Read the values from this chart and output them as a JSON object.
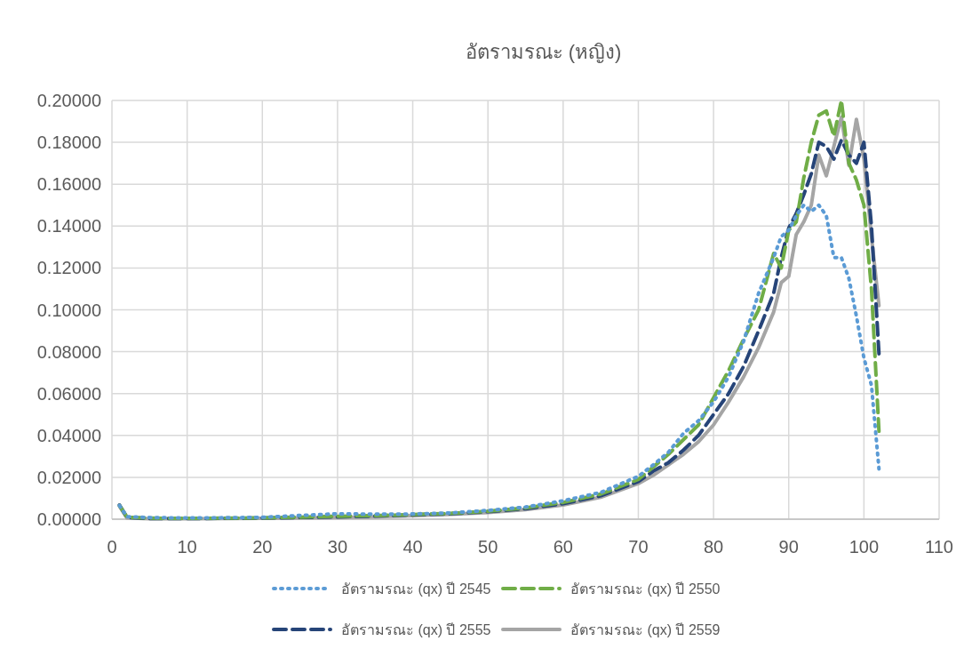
{
  "chart_data": {
    "type": "line",
    "title": "อัตรามรณะ (หญิง)",
    "x": [
      1,
      2,
      5,
      10,
      15,
      20,
      25,
      30,
      35,
      40,
      45,
      50,
      55,
      60,
      65,
      70,
      72,
      74,
      76,
      78,
      80,
      82,
      84,
      86,
      88,
      89,
      90,
      91,
      92,
      93,
      94,
      95,
      96,
      97,
      98,
      99,
      100,
      101,
      102
    ],
    "series": [
      {
        "name": "อัตรามรณะ (qx) ปี 2545",
        "color": "#5b9bd5",
        "line_style": "dotted",
        "values": [
          0.0065,
          0.0012,
          0.0008,
          0.0006,
          0.0007,
          0.0009,
          0.0018,
          0.0026,
          0.0024,
          0.0025,
          0.003,
          0.0042,
          0.0058,
          0.0088,
          0.0128,
          0.0205,
          0.026,
          0.032,
          0.041,
          0.047,
          0.056,
          0.068,
          0.085,
          0.108,
          0.125,
          0.135,
          0.138,
          0.145,
          0.15,
          0.147,
          0.15,
          0.145,
          0.125,
          0.125,
          0.115,
          0.097,
          0.077,
          0.064,
          0.024
        ]
      },
      {
        "name": "อัตรามรณะ (qx) ปี 2550",
        "color": "#70ad47",
        "line_style": "dashed",
        "values": [
          0.0065,
          0.001,
          0.0005,
          0.0004,
          0.0005,
          0.0006,
          0.001,
          0.0014,
          0.0017,
          0.0022,
          0.0028,
          0.0038,
          0.0054,
          0.008,
          0.012,
          0.019,
          0.025,
          0.031,
          0.038,
          0.045,
          0.058,
          0.071,
          0.086,
          0.1,
          0.127,
          0.12,
          0.138,
          0.142,
          0.163,
          0.18,
          0.193,
          0.195,
          0.183,
          0.2,
          0.17,
          0.162,
          0.15,
          0.11,
          0.042
        ]
      },
      {
        "name": "อัตรามรณะ (qx) ปี 2555",
        "color": "#264478",
        "line_style": "dashed",
        "values": [
          0.0068,
          0.0008,
          0.0003,
          0.0003,
          0.0004,
          0.0005,
          0.0008,
          0.0011,
          0.0015,
          0.002,
          0.0026,
          0.0036,
          0.005,
          0.0074,
          0.0112,
          0.018,
          0.023,
          0.027,
          0.033,
          0.04,
          0.05,
          0.06,
          0.073,
          0.09,
          0.108,
          0.125,
          0.139,
          0.146,
          0.155,
          0.165,
          0.18,
          0.178,
          0.172,
          0.181,
          0.174,
          0.17,
          0.18,
          0.14,
          0.079
        ]
      },
      {
        "name": "อัตรามรณะ (qx) ปี 2559",
        "color": "#a5a5a5",
        "line_style": "solid",
        "values": [
          0.0062,
          0.0006,
          0.0002,
          0.0002,
          0.0003,
          0.0004,
          0.0006,
          0.0009,
          0.0012,
          0.0017,
          0.0023,
          0.0032,
          0.0046,
          0.0068,
          0.0105,
          0.017,
          0.021,
          0.026,
          0.031,
          0.037,
          0.045,
          0.056,
          0.068,
          0.082,
          0.099,
          0.113,
          0.116,
          0.136,
          0.142,
          0.15,
          0.174,
          0.164,
          0.178,
          0.192,
          0.169,
          0.191,
          0.172,
          0.135,
          0.102
        ]
      }
    ],
    "xlim": [
      0,
      110
    ],
    "xticks": [
      0,
      10,
      20,
      30,
      40,
      50,
      60,
      70,
      80,
      90,
      100,
      110
    ],
    "ylim": [
      0,
      0.2
    ],
    "yticks": [
      {
        "value": 0,
        "label": "0.00000"
      },
      {
        "value": 0.02,
        "label": "0.02000"
      },
      {
        "value": 0.04,
        "label": "0.04000"
      },
      {
        "value": 0.06,
        "label": "0.06000"
      },
      {
        "value": 0.08,
        "label": "0.08000"
      },
      {
        "value": 0.1,
        "label": "0.10000"
      },
      {
        "value": 0.12,
        "label": "0.12000"
      },
      {
        "value": 0.14,
        "label": "0.14000"
      },
      {
        "value": 0.16,
        "label": "0.16000"
      },
      {
        "value": 0.18,
        "label": "0.18000"
      },
      {
        "value": 0.2,
        "label": "0.20000"
      }
    ],
    "grid": true,
    "legend": "bottom",
    "marker": "none"
  }
}
